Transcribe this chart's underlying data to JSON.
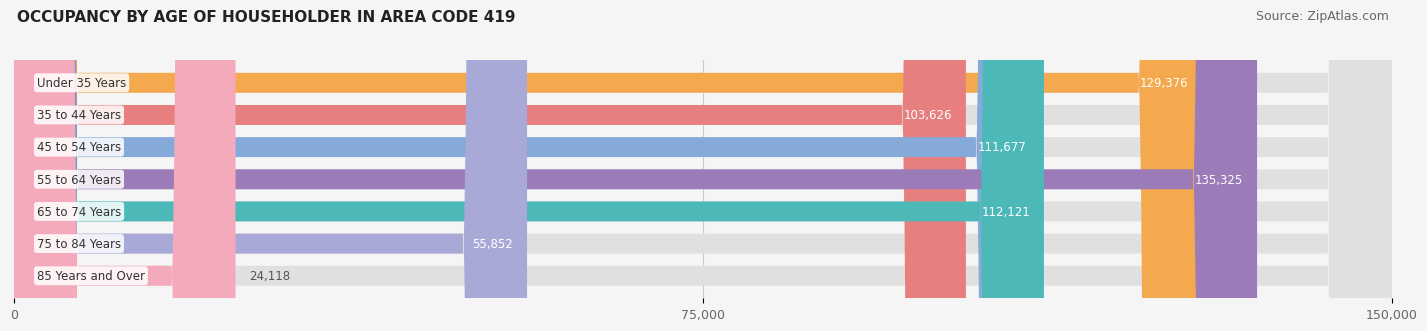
{
  "title": "OCCUPANCY BY AGE OF HOUSEHOLDER IN AREA CODE 419",
  "source": "Source: ZipAtlas.com",
  "categories": [
    "Under 35 Years",
    "35 to 44 Years",
    "45 to 54 Years",
    "55 to 64 Years",
    "65 to 74 Years",
    "75 to 84 Years",
    "85 Years and Over"
  ],
  "values": [
    129376,
    103626,
    111677,
    135325,
    112121,
    55852,
    24118
  ],
  "bar_colors": [
    "#F5A94E",
    "#E87F7F",
    "#85A9D8",
    "#9B7BB8",
    "#4DB8B8",
    "#A9A9D8",
    "#F4AABA"
  ],
  "bar_bg_color": "#E0E0E0",
  "xlim": [
    0,
    150000
  ],
  "xtick_labels": [
    "0",
    "75,000",
    "150,000"
  ],
  "title_fontsize": 11,
  "source_fontsize": 9,
  "label_fontsize": 8.5,
  "value_fontsize": 8.5,
  "bar_height": 0.62,
  "background_color": "#F5F5F5"
}
